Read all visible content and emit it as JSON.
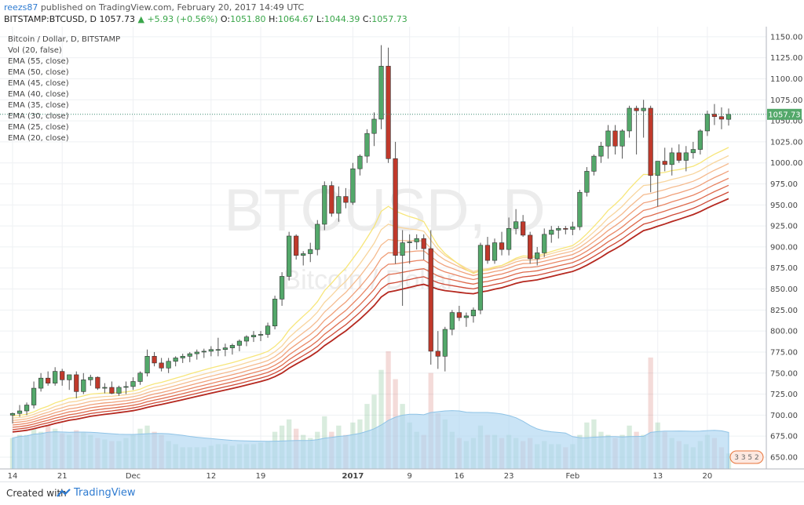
{
  "header": {
    "author": "reezs87",
    "published_text": "published on TradingView.com, February 20, 2017 14:49 UTC",
    "symbol": "BITSTAMP:BTCUSD, D",
    "last": "1057.73",
    "change": "▲ +5.93 (+0.56%)",
    "o_label": "O:",
    "o": "1051.80",
    "h_label": "H:",
    "h": "1064.67",
    "l_label": "L:",
    "l": "1044.39",
    "c_label": "C:",
    "c": "1057.73"
  },
  "legend": {
    "title": "Bitcoin / Dollar, D, BITSTAMP",
    "studies": [
      "Vol (20, false)",
      "EMA (55, close)",
      "EMA (50, close)",
      "EMA (45, close)",
      "EMA (40, close)",
      "EMA (35, close)",
      "EMA (30, close)",
      "EMA (25, close)",
      "EMA (20, close)"
    ]
  },
  "watermark": {
    "big": "BTCUSD, D",
    "small": "Bitcoin / Dollar"
  },
  "price_label": "1057.73",
  "badge": "3 3 5 2",
  "footer": {
    "created_with": "Created with",
    "brand": "TradingView"
  },
  "colors": {
    "up": "#53a86a",
    "down": "#c0392b",
    "ema": [
      "#b5281f",
      "#cf4935",
      "#de6a4c",
      "#e98665",
      "#f0a07a",
      "#f5bb8f",
      "#f8d59d",
      "#f7e67a"
    ],
    "vol_ma": "#aed6f1"
  },
  "chart_data": {
    "type": "candlestick",
    "y_axis_ticks": [
      650,
      675,
      700,
      725,
      750,
      775,
      800,
      825,
      850,
      875,
      900,
      925,
      950,
      975,
      1000,
      1025,
      1050,
      1075,
      1100,
      1125,
      1150
    ],
    "ylim": [
      636,
      1162
    ],
    "x_axis_labels": [
      {
        "label": "14",
        "index": 0
      },
      {
        "label": "21",
        "index": 7
      },
      {
        "label": "Dec",
        "index": 17
      },
      {
        "label": "12",
        "index": 28
      },
      {
        "label": "19",
        "index": 35
      },
      {
        "label": "2017",
        "index": 48
      },
      {
        "label": "9",
        "index": 56
      },
      {
        "label": "16",
        "index": 63
      },
      {
        "label": "23",
        "index": 70
      },
      {
        "label": "Feb",
        "index": 79
      },
      {
        "label": "13",
        "index": 91
      },
      {
        "label": "20",
        "index": 98
      }
    ],
    "candles": [
      [
        700,
        703,
        690,
        702,
        20
      ],
      [
        702,
        712,
        698,
        705,
        22
      ],
      [
        705,
        715,
        700,
        712,
        22
      ],
      [
        712,
        740,
        708,
        732,
        26
      ],
      [
        732,
        750,
        728,
        744,
        24
      ],
      [
        744,
        752,
        735,
        738,
        28
      ],
      [
        738,
        757,
        735,
        752,
        26
      ],
      [
        752,
        755,
        735,
        742,
        23
      ],
      [
        742,
        748,
        730,
        748,
        22
      ],
      [
        748,
        752,
        720,
        728,
        25
      ],
      [
        728,
        750,
        725,
        742,
        24
      ],
      [
        742,
        748,
        735,
        745,
        22
      ],
      [
        745,
        746,
        730,
        732,
        20
      ],
      [
        732,
        738,
        726,
        733,
        19
      ],
      [
        733,
        740,
        725,
        726,
        18
      ],
      [
        726,
        735,
        723,
        733,
        18
      ],
      [
        733,
        740,
        725,
        734,
        20
      ],
      [
        734,
        745,
        730,
        740,
        22
      ],
      [
        740,
        752,
        736,
        750,
        26
      ],
      [
        750,
        778,
        746,
        770,
        28
      ],
      [
        770,
        775,
        758,
        762,
        24
      ],
      [
        762,
        768,
        752,
        756,
        22
      ],
      [
        756,
        768,
        750,
        764,
        18
      ],
      [
        764,
        770,
        758,
        768,
        16
      ],
      [
        768,
        773,
        762,
        770,
        14
      ],
      [
        770,
        775,
        763,
        773,
        14
      ],
      [
        773,
        778,
        766,
        775,
        14
      ],
      [
        775,
        779,
        768,
        776,
        14
      ],
      [
        776,
        782,
        770,
        778,
        15
      ],
      [
        778,
        792,
        770,
        778,
        16
      ],
      [
        778,
        785,
        770,
        780,
        16
      ],
      [
        780,
        785,
        772,
        783,
        15
      ],
      [
        783,
        790,
        776,
        788,
        16
      ],
      [
        788,
        795,
        782,
        793,
        16
      ],
      [
        793,
        800,
        787,
        795,
        16
      ],
      [
        795,
        800,
        788,
        796,
        17
      ],
      [
        796,
        810,
        792,
        806,
        18
      ],
      [
        806,
        842,
        802,
        838,
        24
      ],
      [
        838,
        870,
        830,
        865,
        28
      ],
      [
        865,
        918,
        860,
        913,
        32
      ],
      [
        913,
        915,
        885,
        890,
        26
      ],
      [
        890,
        895,
        878,
        892,
        22
      ],
      [
        892,
        905,
        882,
        897,
        20
      ],
      [
        897,
        932,
        890,
        927,
        24
      ],
      [
        927,
        978,
        920,
        973,
        34
      ],
      [
        973,
        978,
        936,
        940,
        24
      ],
      [
        940,
        972,
        930,
        960,
        28
      ],
      [
        960,
        970,
        946,
        953,
        22
      ],
      [
        953,
        1000,
        950,
        993,
        30
      ],
      [
        993,
        1010,
        985,
        1008,
        32
      ],
      [
        1008,
        1040,
        1000,
        1035,
        42
      ],
      [
        1035,
        1060,
        1020,
        1052,
        48
      ],
      [
        1052,
        1140,
        1040,
        1115,
        64
      ],
      [
        1115,
        1137,
        1000,
        1005,
        76
      ],
      [
        1005,
        1025,
        880,
        890,
        58
      ],
      [
        890,
        920,
        830,
        905,
        42
      ],
      [
        905,
        915,
        880,
        906,
        30
      ],
      [
        906,
        915,
        897,
        910,
        24
      ],
      [
        910,
        915,
        885,
        898,
        22
      ],
      [
        898,
        920,
        760,
        776,
        62
      ],
      [
        776,
        800,
        755,
        770,
        36
      ],
      [
        770,
        805,
        752,
        802,
        32
      ],
      [
        802,
        825,
        795,
        822,
        24
      ],
      [
        822,
        830,
        812,
        816,
        20
      ],
      [
        816,
        822,
        805,
        818,
        18
      ],
      [
        818,
        828,
        810,
        825,
        20
      ],
      [
        825,
        905,
        820,
        902,
        28
      ],
      [
        902,
        912,
        880,
        884,
        22
      ],
      [
        884,
        910,
        880,
        905,
        22
      ],
      [
        905,
        918,
        890,
        897,
        20
      ],
      [
        897,
        935,
        890,
        922,
        22
      ],
      [
        922,
        945,
        915,
        930,
        20
      ],
      [
        930,
        938,
        912,
        914,
        18
      ],
      [
        914,
        918,
        880,
        886,
        20
      ],
      [
        886,
        900,
        878,
        893,
        16
      ],
      [
        893,
        922,
        888,
        915,
        18
      ],
      [
        915,
        925,
        905,
        920,
        16
      ],
      [
        920,
        925,
        910,
        922,
        16
      ],
      [
        922,
        925,
        915,
        921,
        14
      ],
      [
        921,
        930,
        914,
        924,
        16
      ],
      [
        924,
        968,
        920,
        965,
        22
      ],
      [
        965,
        995,
        960,
        990,
        30
      ],
      [
        990,
        1010,
        985,
        1008,
        32
      ],
      [
        1008,
        1025,
        1000,
        1020,
        24
      ],
      [
        1020,
        1045,
        1005,
        1038,
        22
      ],
      [
        1038,
        1045,
        1010,
        1020,
        20
      ],
      [
        1020,
        1040,
        1005,
        1038,
        22
      ],
      [
        1038,
        1068,
        1030,
        1065,
        28
      ],
      [
        1065,
        1068,
        1010,
        1062,
        24
      ],
      [
        1062,
        1075,
        1030,
        1065,
        22
      ],
      [
        1065,
        1068,
        965,
        985,
        72
      ],
      [
        985,
        1000,
        948,
        1002,
        30
      ],
      [
        1002,
        1018,
        990,
        998,
        24
      ],
      [
        998,
        1018,
        985,
        1012,
        20
      ],
      [
        1012,
        1022,
        1000,
        1003,
        18
      ],
      [
        1003,
        1020,
        990,
        1012,
        16
      ],
      [
        1012,
        1025,
        1005,
        1016,
        14
      ],
      [
        1016,
        1040,
        1010,
        1038,
        18
      ],
      [
        1038,
        1062,
        1032,
        1058,
        22
      ],
      [
        1058,
        1070,
        1045,
        1055,
        20
      ],
      [
        1055,
        1066,
        1040,
        1052,
        14
      ],
      [
        1051.8,
        1064.67,
        1044.39,
        1057.73,
        10
      ]
    ]
  }
}
